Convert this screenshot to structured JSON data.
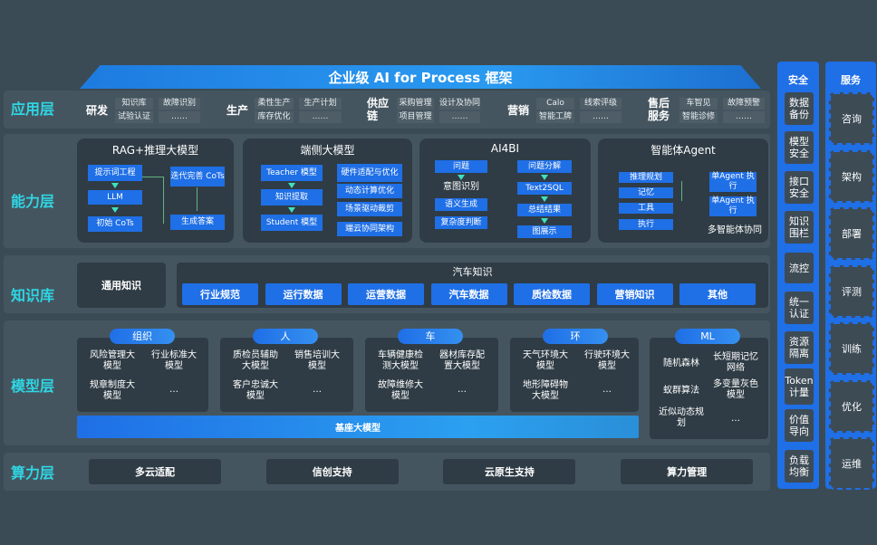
{
  "title": "企业级 AI for Process 框架",
  "layers": [
    "应用层",
    "能力层",
    "知识库",
    "模型层",
    "算力层"
  ],
  "app": [
    {
      "name": "研发",
      "items": [
        "知识库",
        "故障识别",
        "试验认证",
        "……"
      ]
    },
    {
      "name": "生产",
      "items": [
        "柔性生产",
        "生产计划",
        "库存优化",
        "……"
      ]
    },
    {
      "name": "供应链",
      "items": [
        "采购管理",
        "设计及协同",
        "项目管理",
        "……"
      ]
    },
    {
      "name": "营销",
      "items": [
        "Calo",
        "线索评级",
        "智能工牌",
        "……"
      ]
    },
    {
      "name": "售后服务",
      "items": [
        "车智见",
        "故障预警",
        "智能诊修",
        "……"
      ]
    }
  ],
  "capability": {
    "rag": {
      "title": "RAG+推理大模型",
      "boxes": [
        "提示词工程",
        "LLM",
        "初始 CoTs",
        "迭代完善 CoTs",
        "生成答案"
      ]
    },
    "edge": {
      "title": "端侧大模型",
      "boxes": [
        "Teacher 模型",
        "知识提取",
        "Student 模型",
        "硬件适配与优化",
        "动态计算优化",
        "场景驱动裁剪",
        "端云协同架构"
      ]
    },
    "ai4bi": {
      "title": "AI4BI",
      "boxes": [
        "问题",
        "意图识别",
        "语义生成",
        "复杂度判断",
        "问题分解",
        "Text2SQL",
        "总结结果",
        "图展示"
      ]
    },
    "agent": {
      "title": "智能体Agent",
      "boxes": [
        "推理规划",
        "记忆",
        "工具",
        "执行",
        "单Agent 执行",
        "单Agent 执行"
      ],
      "caption": "多智能体协同"
    }
  },
  "knowledge": {
    "general": "通用知识",
    "auto_title": "汽车知识",
    "items": [
      "行业规范",
      "运行数据",
      "运营数据",
      "汽车数据",
      "质检数据",
      "营销知识",
      "其他"
    ]
  },
  "models": [
    {
      "tag": "组织",
      "items": [
        "风险管理大模型",
        "行业标准大模型",
        "规章制度大模型",
        "…"
      ]
    },
    {
      "tag": "人",
      "items": [
        "质检员辅助大模型",
        "销售培训大模型",
        "客户忠诚大模型",
        "…"
      ]
    },
    {
      "tag": "车",
      "items": [
        "车辆健康检测大模型",
        "器材库存配置大模型",
        "故障维修大模型",
        "…"
      ]
    },
    {
      "tag": "环",
      "items": [
        "天气环境大模型",
        "行驶环境大模型",
        "地形障碍物大模型",
        "…"
      ]
    },
    {
      "tag": "ML",
      "items": [
        "随机森林",
        "长短期记忆网络",
        "蚁群算法",
        "多变量灰色模型",
        "近似动态规划",
        "…"
      ]
    }
  ],
  "base_model": "基座大模型",
  "compute": [
    "多云适配",
    "信创支持",
    "云原生支持",
    "算力管理"
  ],
  "security": {
    "title": "安全",
    "items": [
      "数据备份",
      "模型安全",
      "接口安全",
      "知识围栏",
      "流控",
      "统一认证",
      "资源隔离",
      "Token计量",
      "价值导向",
      "负载均衡"
    ]
  },
  "services": {
    "title": "服务",
    "items": [
      "咨询",
      "架构",
      "部署",
      "评测",
      "训练",
      "优化",
      "运维"
    ]
  },
  "colors": {
    "accent": "#1f6fe6",
    "layer_label": "#2fd6e4",
    "background": "#3b4b55"
  }
}
